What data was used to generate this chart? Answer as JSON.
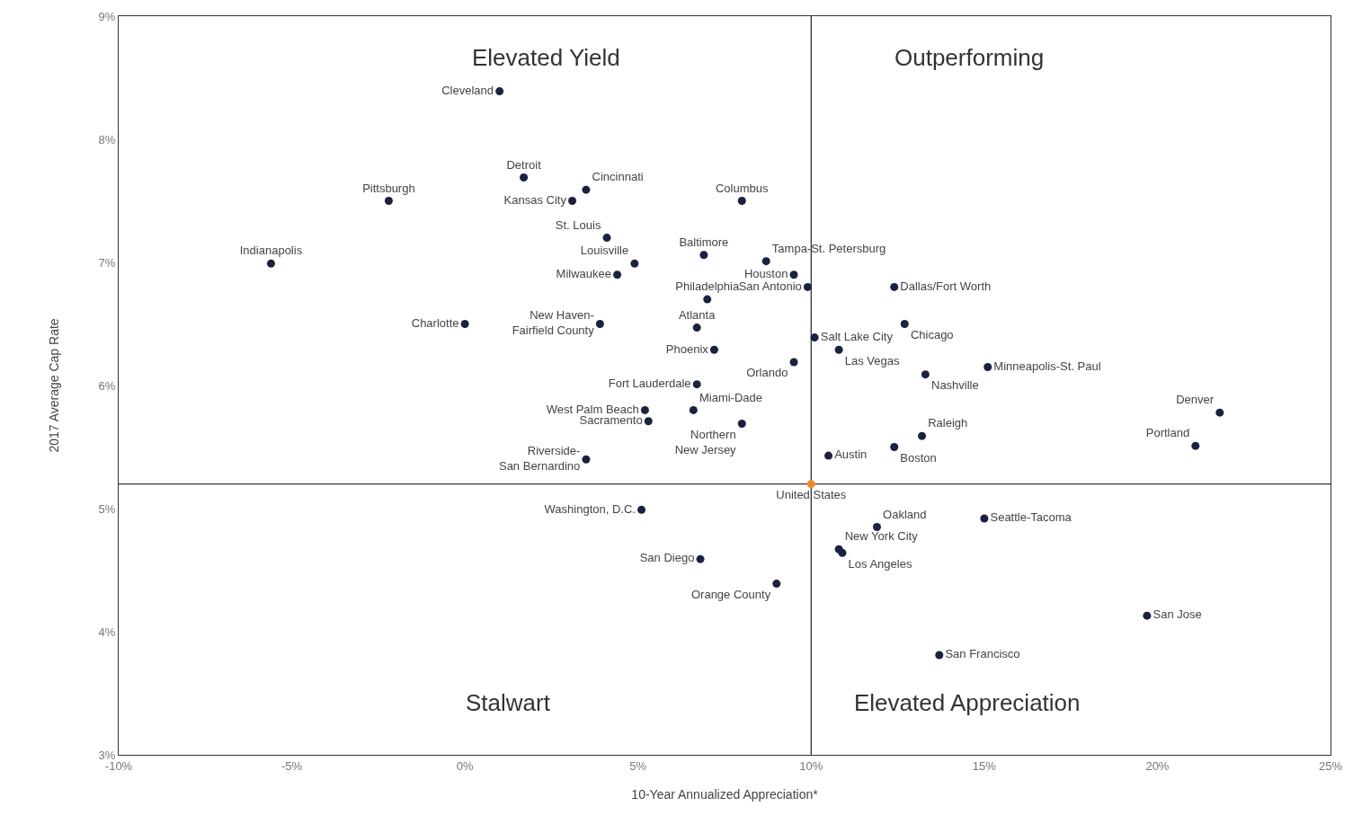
{
  "chart_data": {
    "type": "scatter",
    "xlabel": "10-Year Annualized Appreciation*",
    "ylabel": "2017 Average Cap Rate",
    "xlim": [
      -10,
      25
    ],
    "xticks": [
      {
        "value": -10,
        "label": "-10%"
      },
      {
        "value": -5,
        "label": "-5%"
      },
      {
        "value": 0,
        "label": "0%"
      },
      {
        "value": 5,
        "label": "5%"
      },
      {
        "value": 10,
        "label": "10%"
      },
      {
        "value": 15,
        "label": "15%"
      },
      {
        "value": 20,
        "label": "20%"
      },
      {
        "value": 25,
        "label": "25%"
      }
    ],
    "ylim": [
      3,
      9
    ],
    "yticks": [
      {
        "value": 3,
        "label": "3%"
      },
      {
        "value": 4,
        "label": "4%"
      },
      {
        "value": 5,
        "label": "5%"
      },
      {
        "value": 6,
        "label": "6%"
      },
      {
        "value": 7,
        "label": "7%"
      },
      {
        "value": 8,
        "label": "8%"
      },
      {
        "value": 9,
        "label": "9%"
      }
    ],
    "grid": false,
    "legend": false,
    "marker": "circle",
    "annotations": [
      "Elevated Yield",
      "Outperforming",
      "Stalwart",
      "Elevated Appreciation"
    ],
    "ref_lines": [
      {
        "axis": "x",
        "value": 10,
        "color": "#333333"
      },
      {
        "axis": "y",
        "value": 5.2,
        "color": "#333333"
      }
    ],
    "series": [
      {
        "name": "Cleveland",
        "color": "#1a2240",
        "x": [
          1.0
        ],
        "values": [
          8.39
        ]
      },
      {
        "name": "Detroit",
        "color": "#1a2240",
        "x": [
          1.7
        ],
        "values": [
          7.69
        ]
      },
      {
        "name": "Cincinnati",
        "color": "#1a2240",
        "x": [
          3.5
        ],
        "values": [
          7.59
        ]
      },
      {
        "name": "Kansas City",
        "color": "#1a2240",
        "x": [
          3.1
        ],
        "values": [
          7.5
        ]
      },
      {
        "name": "Pittsburgh",
        "color": "#1a2240",
        "x": [
          -2.2
        ],
        "values": [
          7.5
        ]
      },
      {
        "name": "Columbus",
        "color": "#1a2240",
        "x": [
          8.0
        ],
        "values": [
          7.5
        ]
      },
      {
        "name": "St. Louis",
        "color": "#1a2240",
        "x": [
          4.1
        ],
        "values": [
          7.2
        ]
      },
      {
        "name": "Indianapolis",
        "color": "#1a2240",
        "x": [
          -5.6
        ],
        "values": [
          6.99
        ]
      },
      {
        "name": "Louisville",
        "color": "#1a2240",
        "x": [
          4.9
        ],
        "values": [
          6.99
        ]
      },
      {
        "name": "Milwaukee",
        "color": "#1a2240",
        "x": [
          4.4
        ],
        "values": [
          6.9
        ]
      },
      {
        "name": "Baltimore",
        "color": "#1a2240",
        "x": [
          6.9
        ],
        "values": [
          7.06
        ]
      },
      {
        "name": "Tampa-St. Petersburg",
        "color": "#1a2240",
        "x": [
          8.7
        ],
        "values": [
          7.01
        ]
      },
      {
        "name": "Houston",
        "color": "#1a2240",
        "x": [
          9.5
        ],
        "values": [
          6.9
        ]
      },
      {
        "name": "San Antonio",
        "color": "#1a2240",
        "x": [
          9.9
        ],
        "values": [
          6.8
        ]
      },
      {
        "name": "Philadelphia",
        "color": "#1a2240",
        "x": [
          7.0
        ],
        "values": [
          6.7
        ]
      },
      {
        "name": "Dallas/Fort Worth",
        "color": "#1a2240",
        "x": [
          12.4
        ],
        "values": [
          6.8
        ]
      },
      {
        "name": "Charlotte",
        "color": "#1a2240",
        "x": [
          0.0
        ],
        "values": [
          6.5
        ]
      },
      {
        "name": "New Haven-\nFairfield County",
        "color": "#1a2240",
        "x": [
          3.9
        ],
        "values": [
          6.5
        ]
      },
      {
        "name": "Atlanta",
        "color": "#1a2240",
        "x": [
          6.7
        ],
        "values": [
          6.47
        ]
      },
      {
        "name": "Chicago",
        "color": "#1a2240",
        "x": [
          12.7
        ],
        "values": [
          6.5
        ]
      },
      {
        "name": "Phoenix",
        "color": "#1a2240",
        "x": [
          7.2
        ],
        "values": [
          6.29
        ]
      },
      {
        "name": "Salt Lake City",
        "color": "#1a2240",
        "x": [
          10.1
        ],
        "values": [
          6.39
        ]
      },
      {
        "name": "Las Vegas",
        "color": "#1a2240",
        "x": [
          10.8
        ],
        "values": [
          6.29
        ]
      },
      {
        "name": "Orlando",
        "color": "#1a2240",
        "x": [
          9.5
        ],
        "values": [
          6.19
        ]
      },
      {
        "name": "Minneapolis-St. Paul",
        "color": "#1a2240",
        "x": [
          15.1
        ],
        "values": [
          6.15
        ]
      },
      {
        "name": "Nashville",
        "color": "#1a2240",
        "x": [
          13.3
        ],
        "values": [
          6.09
        ]
      },
      {
        "name": "Fort Lauderdale",
        "color": "#1a2240",
        "x": [
          6.7
        ],
        "values": [
          6.01
        ]
      },
      {
        "name": "Denver",
        "color": "#1a2240",
        "x": [
          21.8
        ],
        "values": [
          5.78
        ]
      },
      {
        "name": "West Palm Beach",
        "color": "#1a2240",
        "x": [
          5.2
        ],
        "values": [
          5.8
        ]
      },
      {
        "name": "Miami-Dade",
        "color": "#1a2240",
        "x": [
          6.6
        ],
        "values": [
          5.8
        ]
      },
      {
        "name": "Sacramento",
        "color": "#1a2240",
        "x": [
          5.3
        ],
        "values": [
          5.71
        ]
      },
      {
        "name": "Northern\nNew Jersey",
        "color": "#1a2240",
        "x": [
          8.0
        ],
        "values": [
          5.69
        ]
      },
      {
        "name": "Raleigh",
        "color": "#1a2240",
        "x": [
          13.2
        ],
        "values": [
          5.59
        ]
      },
      {
        "name": "Portland",
        "color": "#1a2240",
        "x": [
          21.1
        ],
        "values": [
          5.51
        ]
      },
      {
        "name": "Boston",
        "color": "#1a2240",
        "x": [
          12.4
        ],
        "values": [
          5.5
        ]
      },
      {
        "name": "Austin",
        "color": "#1a2240",
        "x": [
          10.5
        ],
        "values": [
          5.43
        ]
      },
      {
        "name": "Riverside-\nSan Bernardino",
        "color": "#1a2240",
        "x": [
          3.5
        ],
        "values": [
          5.4
        ]
      },
      {
        "name": "United States",
        "color": "#f08a24",
        "x": [
          10.0
        ],
        "values": [
          5.2
        ]
      },
      {
        "name": "Washington, D.C.",
        "color": "#1a2240",
        "x": [
          5.1
        ],
        "values": [
          4.99
        ]
      },
      {
        "name": "Oakland",
        "color": "#1a2240",
        "x": [
          11.9
        ],
        "values": [
          4.85
        ]
      },
      {
        "name": "Seattle-Tacoma",
        "color": "#1a2240",
        "x": [
          15.0
        ],
        "values": [
          4.92
        ]
      },
      {
        "name": "New York City",
        "color": "#1a2240",
        "x": [
          10.8
        ],
        "values": [
          4.67
        ]
      },
      {
        "name": "Los Angeles",
        "color": "#1a2240",
        "x": [
          10.9
        ],
        "values": [
          4.64
        ]
      },
      {
        "name": "San Diego",
        "color": "#1a2240",
        "x": [
          6.8
        ],
        "values": [
          4.59
        ]
      },
      {
        "name": "Orange County",
        "color": "#1a2240",
        "x": [
          9.0
        ],
        "values": [
          4.39
        ]
      },
      {
        "name": "San Jose",
        "color": "#1a2240",
        "x": [
          19.7
        ],
        "values": [
          4.13
        ]
      },
      {
        "name": "San Francisco",
        "color": "#1a2240",
        "x": [
          13.7
        ],
        "values": [
          3.81
        ]
      }
    ]
  }
}
